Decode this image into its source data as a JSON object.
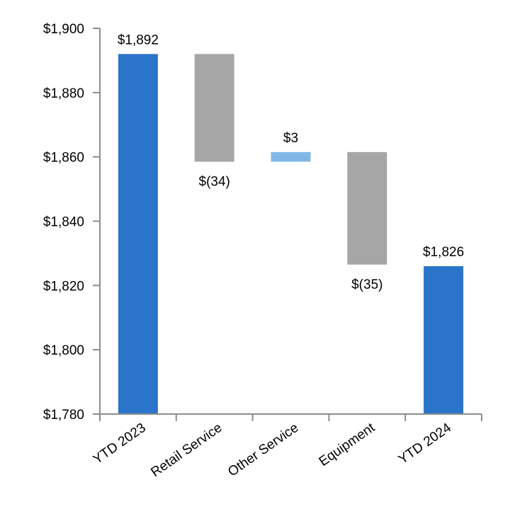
{
  "chart_data": {
    "type": "waterfall",
    "title": "",
    "xlabel": "",
    "ylabel": "",
    "ylim": [
      1780,
      1900
    ],
    "ytick_step": 20,
    "ytick_labels": [
      "$1,780",
      "$1,800",
      "$1,820",
      "$1,840",
      "$1,860",
      "$1,880",
      "$1,900"
    ],
    "categories": [
      "YTD 2023",
      "Retail Service",
      "Other Service",
      "Equipment",
      "YTD 2024"
    ],
    "bars": [
      {
        "category": "YTD 2023",
        "kind": "total",
        "start": 1780,
        "end": 1892,
        "value": 1892,
        "label": "$1,892",
        "label_position": "above"
      },
      {
        "category": "Retail Service",
        "kind": "decrease",
        "start": 1892,
        "end": 1858.5,
        "value": -34,
        "label": "$(34)",
        "label_position": "below"
      },
      {
        "category": "Other Service",
        "kind": "increase",
        "start": 1858.5,
        "end": 1861.5,
        "value": 3,
        "label": "$3",
        "label_position": "above"
      },
      {
        "category": "Equipment",
        "kind": "decrease",
        "start": 1861.5,
        "end": 1826.5,
        "value": -35,
        "label": "$(35)",
        "label_position": "below"
      },
      {
        "category": "YTD 2024",
        "kind": "total",
        "start": 1780,
        "end": 1826,
        "value": 1826,
        "label": "$1,826",
        "label_position": "above"
      }
    ],
    "colors": {
      "total": "#2a74c9",
      "decrease": "#a6a6a6",
      "increase": "#7fb8e6",
      "axis": "#8c8c8c"
    }
  }
}
